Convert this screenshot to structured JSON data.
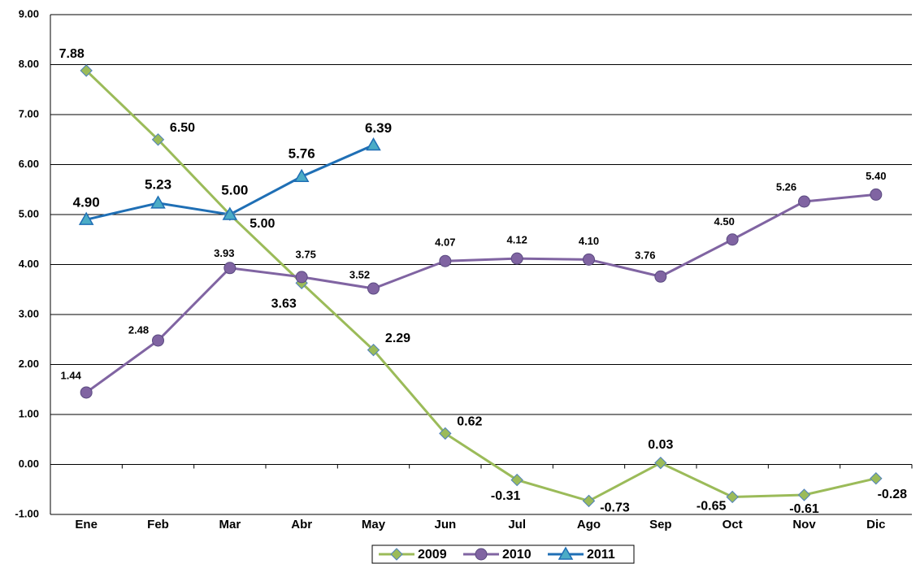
{
  "chart_data": {
    "type": "line",
    "categories": [
      "Ene",
      "Feb",
      "Mar",
      "Abr",
      "May",
      "Jun",
      "Jul",
      "Ago",
      "Sep",
      "Oct",
      "Nov",
      "Dic"
    ],
    "series": [
      {
        "name": "2009",
        "color": "#9bbb59",
        "marker": "diamond",
        "values": [
          7.88,
          6.5,
          5,
          3.63,
          2.29,
          0.62,
          -0.31,
          -0.73,
          0.03,
          -0.65,
          -0.61,
          -0.28
        ],
        "value_labels": [
          "7.88",
          "6.50",
          "5.00",
          "3.63",
          "2.29",
          "0.62",
          "-0.31",
          "-0.73",
          "0.03",
          "-0.65",
          "-0.61",
          "-0.28"
        ]
      },
      {
        "name": "2010",
        "color": "#8064a2",
        "marker": "circle",
        "values": [
          1.44,
          2.48,
          3.93,
          3.75,
          3.52,
          4.07,
          4.12,
          4.1,
          3.76,
          4.5,
          5.26,
          5.4
        ],
        "value_labels": [
          "1.44",
          "2.48",
          "3.93",
          "3.75",
          "3.52",
          "4.07",
          "4.12",
          "4.10",
          "3.76",
          "4.50",
          "5.26",
          "5.40"
        ]
      },
      {
        "name": "2011",
        "color": "#1f6fb5",
        "marker": "triangle",
        "values": [
          4.9,
          5.23,
          5,
          5.76,
          6.39,
          null,
          null,
          null,
          null,
          null,
          null,
          null
        ],
        "value_labels": [
          "4.90",
          "5.23",
          "5.00",
          "5.76",
          "6.39",
          null,
          null,
          null,
          null,
          null,
          null,
          null
        ]
      }
    ],
    "ylim": [
      -1,
      9
    ],
    "yticks": [
      {
        "value": -1,
        "label": "-1.00"
      },
      {
        "value": 0,
        "label": "0.00"
      },
      {
        "value": 1,
        "label": "1.00"
      },
      {
        "value": 2,
        "label": "2.00"
      },
      {
        "value": 3,
        "label": "3.00"
      },
      {
        "value": 4,
        "label": "4.00"
      },
      {
        "value": 5,
        "label": "5.00"
      },
      {
        "value": 6,
        "label": "6.00"
      },
      {
        "value": 7,
        "label": "7.00"
      },
      {
        "value": 8,
        "label": "8.00"
      },
      {
        "value": 9,
        "label": "9.00"
      }
    ],
    "grid": true,
    "legend": "bottom"
  }
}
